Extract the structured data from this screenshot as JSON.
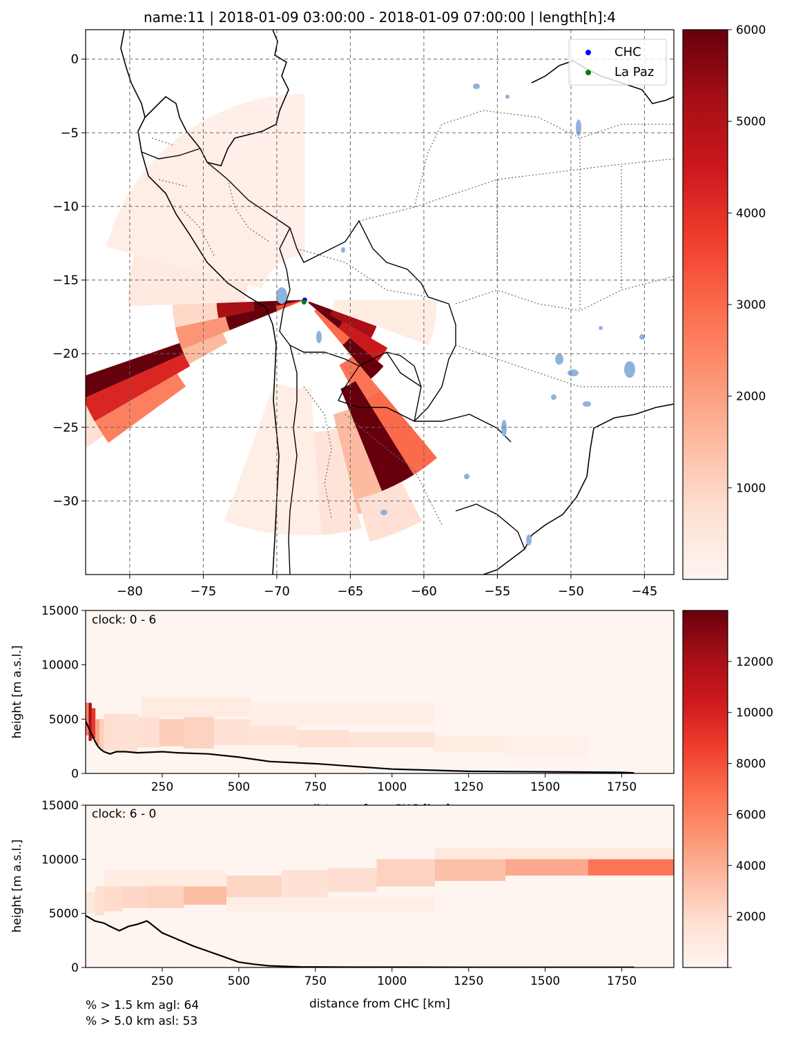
{
  "title": "name:11  |  2018-01-09 03:00:00  -  2018-01-09 07:00:00  |  length[h]:4",
  "colors": {
    "land_line": "#000000",
    "border_line": "#555555",
    "water": "#8fb2dc",
    "grid": "#666666"
  },
  "chart_data": [
    {
      "type": "heatmap",
      "kind": "map",
      "xlim": [
        -83,
        -43
      ],
      "ylim": [
        -35,
        2
      ],
      "xticks": [
        -80,
        -75,
        -70,
        -65,
        -60,
        -55,
        -50,
        -45
      ],
      "yticks": [
        0,
        -5,
        -10,
        -15,
        -20,
        -25,
        -30
      ],
      "xtick_labels": [
        "−80",
        "−75",
        "−70",
        "−65",
        "−60",
        "−55",
        "−50",
        "−45"
      ],
      "ytick_labels": [
        "0",
        "−5",
        "−10",
        "−15",
        "−20",
        "−25",
        "−30"
      ],
      "grid": true,
      "legend": {
        "placement": "top-right",
        "entries": [
          {
            "label": "CHC",
            "color": "#0000ff",
            "lon": -68.1,
            "lat": -16.35
          },
          {
            "label": "La Paz",
            "color": "#008000",
            "lon": -68.15,
            "lat": -16.5
          }
        ]
      },
      "colorbar": {
        "vmin": 0,
        "vmax": 6000,
        "ticks": [
          1000,
          2000,
          3000,
          4000,
          5000,
          6000
        ],
        "tick_labels": [
          "1000",
          "2000",
          "3000",
          "4000",
          "5000",
          "6000"
        ]
      },
      "sectors": [
        {
          "az_from": 258,
          "az_to": 268,
          "r_from": 0,
          "r_to": 1.5,
          "value": 6000
        },
        {
          "az_from": 258,
          "az_to": 268,
          "r_from": 1.5,
          "r_to": 3.5,
          "value": 6000
        },
        {
          "az_from": 258,
          "az_to": 268,
          "r_from": 3.5,
          "r_to": 6,
          "value": 5200
        },
        {
          "az_from": 258,
          "az_to": 268,
          "r_from": 6,
          "r_to": 9,
          "value": 900
        },
        {
          "az_from": 248,
          "az_to": 258,
          "r_from": 0,
          "r_to": 2,
          "value": 3500
        },
        {
          "az_from": 248,
          "az_to": 258,
          "r_from": 2,
          "r_to": 5.5,
          "value": 6000
        },
        {
          "az_from": 248,
          "az_to": 258,
          "r_from": 5.5,
          "r_to": 9,
          "value": 2200
        },
        {
          "az_from": 241,
          "az_to": 248,
          "r_from": 6,
          "r_to": 9,
          "value": 1500
        },
        {
          "az_from": 246,
          "az_to": 251,
          "r_from": 9,
          "r_to": 16.5,
          "value": 6000
        },
        {
          "az_from": 240,
          "az_to": 246,
          "r_from": 9,
          "r_to": 16.5,
          "value": 4200
        },
        {
          "az_from": 234,
          "az_to": 240,
          "r_from": 10,
          "r_to": 16.5,
          "value": 2600
        },
        {
          "az_from": 236,
          "az_to": 250,
          "r_from": 16.5,
          "r_to": 20,
          "value": 700
        },
        {
          "az_from": 268,
          "az_to": 285,
          "r_from": 4,
          "r_to": 12,
          "value": 400
        },
        {
          "az_from": 285,
          "az_to": 330,
          "r_from": 3,
          "r_to": 14,
          "value": 250
        },
        {
          "az_from": 330,
          "az_to": 360,
          "r_from": 3,
          "r_to": 14,
          "value": 200
        },
        {
          "az_from": 110,
          "az_to": 120,
          "r_from": 0.3,
          "r_to": 2,
          "value": 6000
        },
        {
          "az_from": 110,
          "az_to": 120,
          "r_from": 2,
          "r_to": 5.2,
          "value": 5200
        },
        {
          "az_from": 120,
          "az_to": 130,
          "r_from": 0.3,
          "r_to": 3,
          "value": 6000
        },
        {
          "az_from": 120,
          "az_to": 130,
          "r_from": 3,
          "r_to": 6.5,
          "value": 4500
        },
        {
          "az_from": 130,
          "az_to": 140,
          "r_from": 1,
          "r_to": 4,
          "value": 3000
        },
        {
          "az_from": 130,
          "az_to": 140,
          "r_from": 4,
          "r_to": 7,
          "value": 6000
        },
        {
          "az_from": 140,
          "az_to": 152,
          "r_from": 5,
          "r_to": 10,
          "value": 2800
        },
        {
          "az_from": 148,
          "az_to": 158,
          "r_from": 6.5,
          "r_to": 14,
          "value": 6000
        },
        {
          "az_from": 140,
          "az_to": 148,
          "r_from": 8,
          "r_to": 14,
          "value": 3000
        },
        {
          "az_from": 158,
          "az_to": 166,
          "r_from": 8,
          "r_to": 15,
          "value": 1500
        },
        {
          "az_from": 166,
          "az_to": 176,
          "r_from": 9,
          "r_to": 16,
          "value": 600
        },
        {
          "az_from": 152,
          "az_to": 165,
          "r_from": 14,
          "r_to": 17,
          "value": 700
        },
        {
          "az_from": 90,
          "az_to": 110,
          "r_from": 2,
          "r_to": 9,
          "value": 300
        },
        {
          "az_from": 176,
          "az_to": 200,
          "r_from": 6,
          "r_to": 16,
          "value": 250
        }
      ]
    },
    {
      "type": "heatmap",
      "kind": "cross-section",
      "annotation": "clock: 0 - 6",
      "xlabel": "distance from CHC [km]",
      "ylabel": "height [m a.s.l.]",
      "xlim": [
        0,
        1920
      ],
      "ylim": [
        0,
        15000
      ],
      "xticks": [
        250,
        500,
        750,
        1000,
        1250,
        1500,
        1750
      ],
      "yticks": [
        0,
        5000,
        10000,
        15000
      ],
      "colorbar": {
        "vmin": 0,
        "vmax": 14000,
        "ticks": [
          0,
          2000,
          4000,
          6000,
          8000,
          10000,
          12000
        ],
        "tick_labels": [
          "",
          "2000",
          "4000",
          "6000",
          "8000",
          "10000",
          "12000"
        ]
      },
      "cells": [
        {
          "x0": 0,
          "x1": 10,
          "y0": 3500,
          "y1": 6500,
          "value": 6000
        },
        {
          "x0": 10,
          "x1": 20,
          "y0": 3000,
          "y1": 6500,
          "value": 12000
        },
        {
          "x0": 20,
          "x1": 32,
          "y0": 3200,
          "y1": 6000,
          "value": 9000
        },
        {
          "x0": 32,
          "x1": 45,
          "y0": 2600,
          "y1": 5000,
          "value": 4500
        },
        {
          "x0": 45,
          "x1": 60,
          "y0": 2200,
          "y1": 5000,
          "value": 2600
        },
        {
          "x0": 60,
          "x1": 110,
          "y0": 2100,
          "y1": 5500,
          "value": 1800
        },
        {
          "x0": 110,
          "x1": 170,
          "y0": 2000,
          "y1": 5500,
          "value": 1600
        },
        {
          "x0": 170,
          "x1": 240,
          "y0": 2400,
          "y1": 5200,
          "value": 1800
        },
        {
          "x0": 240,
          "x1": 320,
          "y0": 2500,
          "y1": 5000,
          "value": 2600
        },
        {
          "x0": 320,
          "x1": 420,
          "y0": 2300,
          "y1": 5200,
          "value": 2400
        },
        {
          "x0": 420,
          "x1": 540,
          "y0": 2600,
          "y1": 5000,
          "value": 1600
        },
        {
          "x0": 540,
          "x1": 690,
          "y0": 2600,
          "y1": 4400,
          "value": 1500
        },
        {
          "x0": 690,
          "x1": 860,
          "y0": 2400,
          "y1": 4000,
          "value": 1700
        },
        {
          "x0": 860,
          "x1": 1140,
          "y0": 2400,
          "y1": 3800,
          "value": 1400
        },
        {
          "x0": 1140,
          "x1": 1370,
          "y0": 2000,
          "y1": 3500,
          "value": 700
        },
        {
          "x0": 180,
          "x1": 540,
          "y0": 5200,
          "y1": 7000,
          "value": 800
        },
        {
          "x0": 540,
          "x1": 1140,
          "y0": 4400,
          "y1": 6500,
          "value": 500
        },
        {
          "x0": 1370,
          "x1": 1640,
          "y0": 1500,
          "y1": 3500,
          "value": 400
        }
      ],
      "topography": {
        "x": [
          0,
          10,
          20,
          30,
          40,
          50,
          60,
          80,
          100,
          130,
          170,
          250,
          300,
          400,
          500,
          600,
          750,
          1000,
          1250,
          1500,
          1750,
          1790
        ],
        "y": [
          4800,
          4200,
          3600,
          3000,
          2500,
          2200,
          2000,
          1800,
          2000,
          2000,
          1900,
          2000,
          1900,
          1800,
          1500,
          1100,
          900,
          400,
          200,
          150,
          100,
          50
        ]
      }
    },
    {
      "type": "heatmap",
      "kind": "cross-section",
      "annotation": "clock: 6 - 0",
      "xlabel": "distance from CHC [km]",
      "ylabel": "height [m a.s.l.]",
      "xlim": [
        0,
        1920
      ],
      "ylim": [
        0,
        15000
      ],
      "xticks": [
        250,
        500,
        750,
        1000,
        1250,
        1500,
        1750
      ],
      "yticks": [
        0,
        5000,
        10000,
        15000
      ],
      "cells": [
        {
          "x0": 0,
          "x1": 30,
          "y0": 5000,
          "y1": 7000,
          "value": 1200
        },
        {
          "x0": 30,
          "x1": 60,
          "y0": 4800,
          "y1": 7500,
          "value": 1700
        },
        {
          "x0": 60,
          "x1": 120,
          "y0": 5200,
          "y1": 7500,
          "value": 2000
        },
        {
          "x0": 120,
          "x1": 200,
          "y0": 5500,
          "y1": 8000,
          "value": 2200
        },
        {
          "x0": 200,
          "x1": 320,
          "y0": 5500,
          "y1": 8000,
          "value": 2400
        },
        {
          "x0": 320,
          "x1": 460,
          "y0": 5800,
          "y1": 7800,
          "value": 3400
        },
        {
          "x0": 460,
          "x1": 640,
          "y0": 6200,
          "y1": 8500,
          "value": 2200
        },
        {
          "x0": 640,
          "x1": 790,
          "y0": 6500,
          "y1": 9000,
          "value": 1600
        },
        {
          "x0": 790,
          "x1": 950,
          "y0": 7000,
          "y1": 9200,
          "value": 1800
        },
        {
          "x0": 950,
          "x1": 1140,
          "y0": 7500,
          "y1": 10000,
          "value": 2400
        },
        {
          "x0": 1140,
          "x1": 1370,
          "y0": 8000,
          "y1": 10000,
          "value": 3300
        },
        {
          "x0": 1370,
          "x1": 1640,
          "y0": 8500,
          "y1": 10300,
          "value": 4300
        },
        {
          "x0": 1640,
          "x1": 1920,
          "y0": 8500,
          "y1": 10500,
          "value": 6500
        },
        {
          "x0": 60,
          "x1": 460,
          "y0": 7500,
          "y1": 9000,
          "value": 700
        },
        {
          "x0": 460,
          "x1": 1140,
          "y0": 5200,
          "y1": 6500,
          "value": 600
        },
        {
          "x0": 1140,
          "x1": 1920,
          "y0": 10000,
          "y1": 11000,
          "value": 1200
        }
      ],
      "topography": {
        "x": [
          0,
          30,
          60,
          80,
          110,
          140,
          170,
          200,
          210,
          250,
          300,
          350,
          400,
          450,
          500,
          550,
          600,
          700,
          800,
          1000,
          1250,
          1500,
          1750,
          1790
        ],
        "y": [
          4800,
          4300,
          4100,
          3800,
          3400,
          3800,
          4000,
          4300,
          4100,
          3200,
          2600,
          2000,
          1500,
          1000,
          500,
          300,
          150,
          60,
          40,
          30,
          20,
          20,
          20,
          20
        ]
      }
    }
  ],
  "stats": {
    "agl_line": "% > 1.5 km agl: 64",
    "asl_line": "% > 5.0 km asl: 53"
  }
}
